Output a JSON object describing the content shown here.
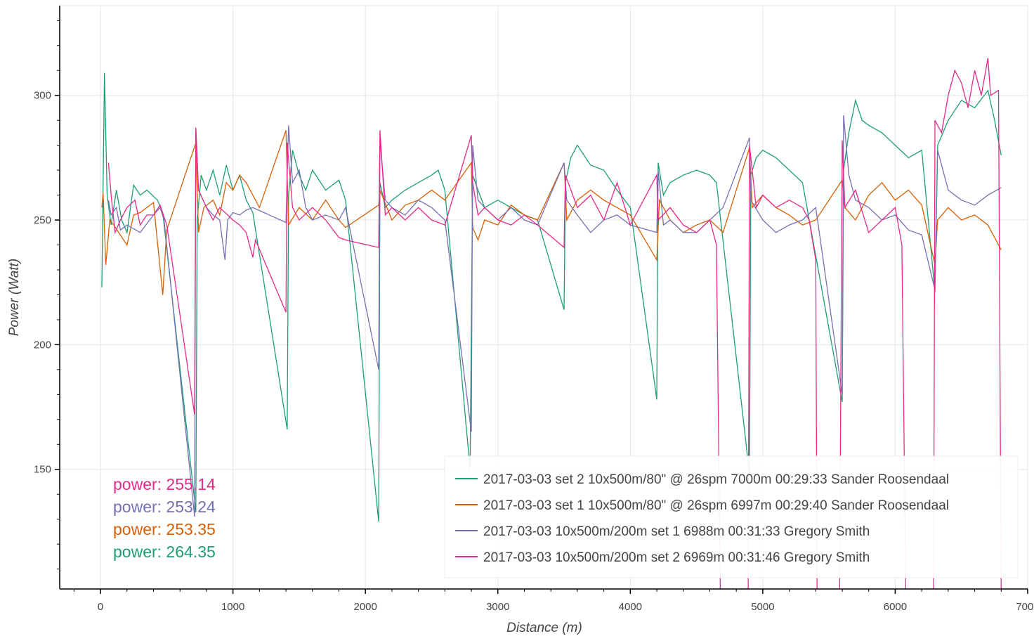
{
  "chart_data": {
    "type": "line",
    "title": "",
    "xlabel": "Distance (m)",
    "ylabel": "Power (Watt)",
    "xlim": [
      -308,
      7000
    ],
    "ylim": [
      102,
      336
    ],
    "xticks": [
      0,
      1000,
      2000,
      3000,
      4000,
      5000,
      6000,
      7000
    ],
    "xtick_labels": [
      "0",
      "1000",
      "2000",
      "3000",
      "4000",
      "5000",
      "6000",
      "7000"
    ],
    "yticks": [
      150,
      200,
      250,
      300
    ],
    "ytick_labels": [
      "150",
      "200",
      "250",
      "300"
    ],
    "grid": true,
    "legend_placement": "bottom-right",
    "series": [
      {
        "name": "2017-03-03 set 2 10x500m/80\" @ 26spm 7000m 00:29:33 Sander Roosendaal",
        "color": "#1b9e77",
        "x": [
          10,
          30,
          50,
          80,
          120,
          160,
          200,
          250,
          300,
          350,
          430,
          470,
          720,
          730,
          760,
          800,
          850,
          900,
          950,
          1000,
          1050,
          1100,
          1150,
          1410,
          1420,
          1450,
          1500,
          1550,
          1600,
          1700,
          1800,
          1850,
          2100,
          2110,
          2150,
          2200,
          2300,
          2400,
          2500,
          2550,
          2600,
          2790,
          2810,
          2850,
          2900,
          3000,
          3100,
          3200,
          3300,
          3500,
          3510,
          3550,
          3600,
          3700,
          3800,
          3900,
          4000,
          4200,
          4210,
          4250,
          4300,
          4400,
          4500,
          4600,
          4650,
          4900,
          4910,
          4950,
          5000,
          5100,
          5200,
          5300,
          5600,
          5610,
          5650,
          5700,
          5750,
          5800,
          5900,
          6000,
          6100,
          6200,
          6300,
          6320,
          6400,
          6500,
          6600,
          6700,
          6750,
          6800
        ],
        "y": [
          223,
          309,
          260,
          248,
          262,
          250,
          245,
          264,
          260,
          262,
          258,
          253,
          133,
          250,
          268,
          262,
          270,
          260,
          272,
          262,
          268,
          258,
          253,
          166,
          260,
          278,
          268,
          262,
          270,
          262,
          266,
          258,
          129,
          265,
          255,
          258,
          262,
          265,
          268,
          270,
          262,
          150,
          268,
          262,
          255,
          258,
          255,
          252,
          250,
          214,
          265,
          275,
          280,
          272,
          270,
          262,
          255,
          178,
          273,
          260,
          265,
          268,
          270,
          268,
          265,
          148,
          268,
          275,
          278,
          275,
          270,
          265,
          177,
          270,
          285,
          298,
          290,
          288,
          285,
          280,
          275,
          278,
          221,
          280,
          290,
          298,
          295,
          302,
          290,
          276
        ]
      },
      {
        "name": "2017-03-03 set 1 10x500m/80\" @ 26spm 6997m 00:29:40 Sander Roosendaal",
        "color": "#d95f02",
        "x": [
          10,
          20,
          40,
          70,
          100,
          200,
          250,
          300,
          400,
          470,
          500,
          720,
          740,
          780,
          850,
          900,
          950,
          1000,
          1050,
          1100,
          1200,
          1400,
          1420,
          1500,
          1600,
          1700,
          1800,
          1850,
          2100,
          2110,
          2200,
          2300,
          2400,
          2500,
          2600,
          2800,
          2810,
          2850,
          2900,
          3000,
          3100,
          3200,
          3300,
          3500,
          3520,
          3600,
          3700,
          3800,
          3900,
          4000,
          4200,
          4220,
          4300,
          4400,
          4500,
          4600,
          4700,
          4900,
          4920,
          5000,
          5100,
          5200,
          5300,
          5400,
          5600,
          5620,
          5700,
          5800,
          5900,
          6000,
          6100,
          6200,
          6300,
          6320,
          6400,
          6500,
          6600,
          6700,
          6800
        ],
        "y": [
          255,
          261,
          232,
          250,
          248,
          240,
          252,
          253,
          257,
          220,
          246,
          281,
          245,
          255,
          258,
          252,
          265,
          262,
          268,
          265,
          255,
          286,
          248,
          255,
          250,
          258,
          250,
          247,
          256,
          262,
          250,
          256,
          258,
          262,
          258,
          273,
          247,
          242,
          250,
          248,
          256,
          252,
          250,
          273,
          250,
          258,
          262,
          258,
          255,
          252,
          234,
          258,
          250,
          245,
          248,
          250,
          245,
          279,
          255,
          260,
          255,
          252,
          248,
          250,
          266,
          255,
          250,
          260,
          265,
          258,
          262,
          256,
          232,
          250,
          255,
          250,
          252,
          248,
          238
        ]
      },
      {
        "name": "2017-03-03 10x500m/200m set 1 6988m 00:31:33 Gregory Smith",
        "color": "#7570b3",
        "x": [
          60,
          80,
          120,
          150,
          200,
          300,
          400,
          450,
          480,
          710,
          720,
          740,
          800,
          850,
          900,
          940,
          960,
          1000,
          1050,
          1100,
          1150,
          1400,
          1420,
          1450,
          1500,
          1550,
          1600,
          1700,
          1800,
          1850,
          2100,
          2110,
          2150,
          2200,
          2300,
          2400,
          2500,
          2600,
          2800,
          2810,
          2850,
          2900,
          3000,
          3100,
          3200,
          3300,
          3500,
          3520,
          3600,
          3700,
          3800,
          3900,
          4000,
          4200,
          4210,
          4250,
          4300,
          4400,
          4500,
          4600,
          4700,
          4900,
          4910,
          5000,
          5100,
          5200,
          5300,
          5400,
          5600,
          5610,
          5650,
          5700,
          5800,
          5900,
          6000,
          6100,
          6200,
          6300,
          6320,
          6400,
          6500,
          6600,
          6700,
          6800
        ],
        "y": [
          258,
          252,
          255,
          246,
          248,
          245,
          252,
          255,
          250,
          131,
          287,
          262,
          255,
          252,
          250,
          234,
          250,
          253,
          252,
          254,
          255,
          249,
          288,
          265,
          270,
          255,
          250,
          252,
          250,
          255,
          190,
          282,
          258,
          255,
          252,
          258,
          255,
          250,
          165,
          280,
          258,
          255,
          250,
          255,
          250,
          248,
          273,
          258,
          252,
          245,
          250,
          252,
          248,
          245,
          270,
          248,
          250,
          245,
          245,
          250,
          255,
          283,
          258,
          250,
          245,
          248,
          250,
          255,
          180,
          292,
          268,
          258,
          255,
          250,
          252,
          246,
          244,
          222,
          278,
          262,
          258,
          256,
          260,
          263
        ]
      },
      {
        "name": "2017-03-03 10x500m/200m set 2 6969m 00:31:46 Gregory Smith",
        "color": "#e7298a",
        "x": [
          60,
          80,
          110,
          150,
          200,
          260,
          300,
          350,
          400,
          450,
          500,
          710,
          720,
          740,
          800,
          850,
          900,
          1000,
          1050,
          1100,
          1150,
          1170,
          1400,
          1410,
          1450,
          1500,
          1600,
          1700,
          1800,
          1850,
          2100,
          2110,
          2150,
          2200,
          2300,
          2400,
          2500,
          2600,
          2800,
          2810,
          2850,
          2900,
          3000,
          3100,
          3200,
          3300,
          3500,
          3510,
          3600,
          3700,
          3800,
          3900,
          4000,
          4200,
          4210,
          4300,
          4400,
          4500,
          4600,
          4650,
          4680,
          4890,
          4900,
          4950,
          5000,
          5100,
          5200,
          5300,
          5350,
          5400,
          5410,
          5580,
          5600,
          5620,
          5700,
          5800,
          5900,
          6000,
          6050,
          6080,
          6290,
          6300,
          6350,
          6400,
          6450,
          6500,
          6550,
          6600,
          6650,
          6700,
          6720,
          6780,
          6800
        ],
        "y": [
          273,
          260,
          245,
          250,
          255,
          258,
          248,
          252,
          252,
          256,
          248,
          172,
          287,
          262,
          255,
          250,
          255,
          250,
          248,
          245,
          235,
          242,
          213,
          281,
          255,
          250,
          255,
          250,
          243,
          242,
          239,
          286,
          252,
          255,
          250,
          255,
          250,
          248,
          284,
          265,
          252,
          255,
          250,
          248,
          252,
          248,
          239,
          268,
          255,
          260,
          250,
          265,
          248,
          268,
          250,
          255,
          248,
          245,
          250,
          240,
          100,
          100,
          280,
          255,
          260,
          255,
          258,
          255,
          250,
          234,
          100,
          100,
          282,
          255,
          262,
          245,
          250,
          255,
          240,
          100,
          100,
          290,
          285,
          300,
          310,
          305,
          295,
          310,
          300,
          315,
          300,
          302,
          100
        ]
      }
    ],
    "hover_readouts": [
      {
        "text": "power: 255.14",
        "color": "#e7298a"
      },
      {
        "text": "power: 253.24",
        "color": "#7570b3"
      },
      {
        "text": "power: 253.35",
        "color": "#d95f02"
      },
      {
        "text": "power: 264.35",
        "color": "#1b9e77"
      }
    ]
  }
}
